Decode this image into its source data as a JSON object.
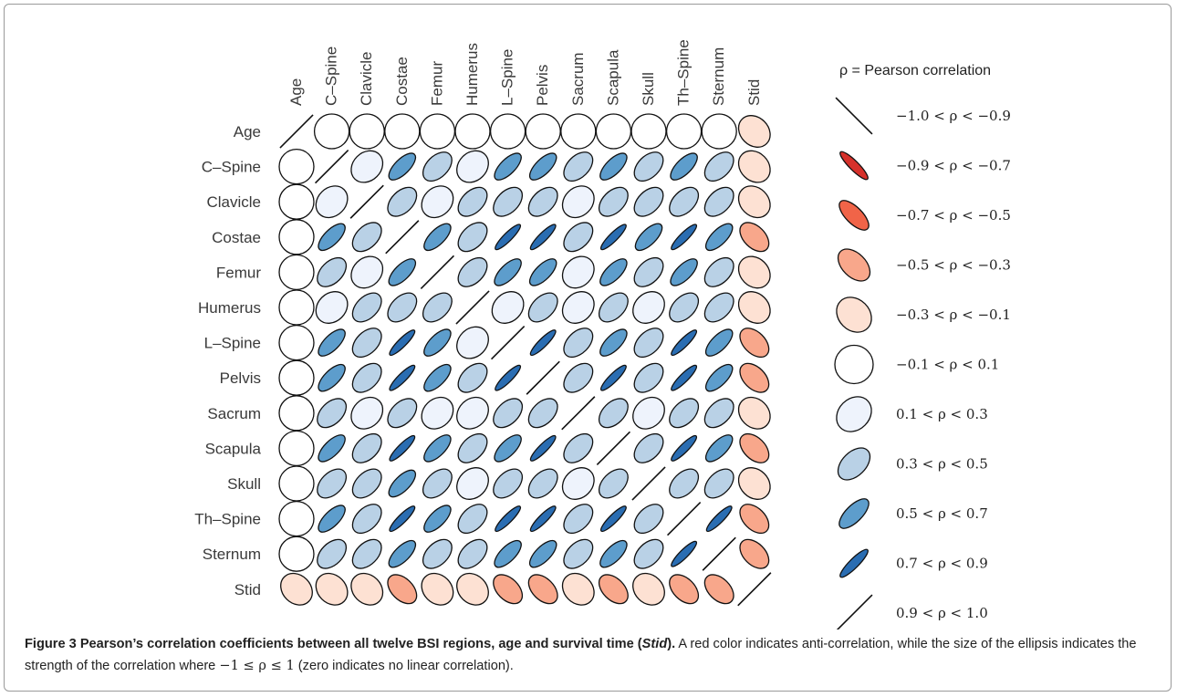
{
  "chart_data": {
    "type": "heatmap",
    "rows": [
      "Age",
      "C_Spine",
      "Clavicle",
      "Costae",
      "Femur",
      "Humerus",
      "L_Spine",
      "Pelvis",
      "Sacrum",
      "Scapula",
      "Skull",
      "Th_Spine",
      "Sternum",
      "Stid"
    ],
    "columns": [
      "Age",
      "C_Spine",
      "Clavicle",
      "Costae",
      "Femur",
      "Humerus",
      "L_Spine",
      "Pelvis",
      "Sacrum",
      "Scapula",
      "Skull",
      "Th_Spine",
      "Sternum",
      "Stid"
    ],
    "row_labels": [
      "Age",
      "C–Spine",
      "Clavicle",
      "Costae",
      "Femur",
      "Humerus",
      "L–Spine",
      "Pelvis",
      "Sacrum",
      "Scapula",
      "Skull",
      "Th–Spine",
      "Sternum",
      "Stid"
    ],
    "column_labels": [
      "Age",
      "C–Spine",
      "Clavicle",
      "Costae",
      "Femur",
      "Humerus",
      "L–Spine",
      "Pelvis",
      "Sacrum",
      "Scapula",
      "Skull",
      "Th–Spine",
      "Sternum",
      "Stid"
    ],
    "values": [
      [
        1.0,
        0.0,
        0.0,
        0.0,
        0.0,
        0.0,
        0.0,
        0.0,
        0.0,
        0.0,
        0.0,
        0.0,
        0.0,
        -0.2
      ],
      [
        0.0,
        1.0,
        0.2,
        0.6,
        0.4,
        0.2,
        0.6,
        0.6,
        0.4,
        0.6,
        0.4,
        0.6,
        0.4,
        -0.2
      ],
      [
        0.0,
        0.2,
        1.0,
        0.4,
        0.2,
        0.4,
        0.4,
        0.4,
        0.2,
        0.4,
        0.4,
        0.4,
        0.4,
        -0.2
      ],
      [
        0.0,
        0.6,
        0.4,
        1.0,
        0.6,
        0.4,
        0.8,
        0.8,
        0.4,
        0.8,
        0.6,
        0.8,
        0.6,
        -0.4
      ],
      [
        0.0,
        0.4,
        0.2,
        0.6,
        1.0,
        0.4,
        0.6,
        0.6,
        0.2,
        0.6,
        0.4,
        0.6,
        0.4,
        -0.2
      ],
      [
        0.0,
        0.2,
        0.4,
        0.4,
        0.4,
        1.0,
        0.2,
        0.4,
        0.2,
        0.4,
        0.2,
        0.4,
        0.4,
        -0.2
      ],
      [
        0.0,
        0.6,
        0.4,
        0.8,
        0.6,
        0.2,
        1.0,
        0.8,
        0.4,
        0.6,
        0.4,
        0.8,
        0.6,
        -0.4
      ],
      [
        0.0,
        0.6,
        0.4,
        0.8,
        0.6,
        0.4,
        0.8,
        1.0,
        0.4,
        0.8,
        0.4,
        0.8,
        0.6,
        -0.4
      ],
      [
        0.0,
        0.4,
        0.2,
        0.4,
        0.2,
        0.2,
        0.4,
        0.4,
        1.0,
        0.4,
        0.2,
        0.4,
        0.4,
        -0.2
      ],
      [
        0.0,
        0.6,
        0.4,
        0.8,
        0.6,
        0.4,
        0.6,
        0.8,
        0.4,
        1.0,
        0.4,
        0.8,
        0.6,
        -0.4
      ],
      [
        0.0,
        0.4,
        0.4,
        0.6,
        0.4,
        0.2,
        0.4,
        0.4,
        0.2,
        0.4,
        1.0,
        0.4,
        0.4,
        -0.2
      ],
      [
        0.0,
        0.6,
        0.4,
        0.8,
        0.6,
        0.4,
        0.8,
        0.8,
        0.4,
        0.8,
        0.4,
        1.0,
        0.8,
        -0.4
      ],
      [
        0.0,
        0.4,
        0.4,
        0.6,
        0.4,
        0.4,
        0.6,
        0.6,
        0.4,
        0.6,
        0.4,
        0.8,
        1.0,
        -0.4
      ],
      [
        -0.2,
        -0.2,
        -0.2,
        -0.4,
        -0.2,
        -0.2,
        -0.4,
        -0.4,
        -0.2,
        -0.4,
        -0.2,
        -0.4,
        -0.4,
        1.0
      ]
    ],
    "legend": {
      "title": "ρ = Pearson correlation",
      "items": [
        {
          "label": "−1.0 < ρ < −0.9",
          "value": -0.95,
          "color": "#ffffff"
        },
        {
          "label": "−0.9 < ρ < −0.7",
          "value": -0.8,
          "color": "#d6312b"
        },
        {
          "label": "−0.7 < ρ < −0.5",
          "value": -0.6,
          "color": "#f06448"
        },
        {
          "label": "−0.5 < ρ < −0.3",
          "value": -0.4,
          "color": "#f8a78b"
        },
        {
          "label": "−0.3 < ρ < −0.1",
          "value": -0.2,
          "color": "#fde1d3"
        },
        {
          "label": "−0.1 < ρ < 0.1",
          "value": 0.0,
          "color": "#ffffff"
        },
        {
          "label": "0.1 < ρ < 0.3",
          "value": 0.2,
          "color": "#eef3fc"
        },
        {
          "label": "0.3 < ρ < 0.5",
          "value": 0.4,
          "color": "#b9d1e6"
        },
        {
          "label": "0.5 < ρ < 0.7",
          "value": 0.6,
          "color": "#5d9dcc"
        },
        {
          "label": "0.7 < ρ < 0.9",
          "value": 0.8,
          "color": "#2a6db2"
        },
        {
          "label": "0.9 < ρ < 1.0",
          "value": 0.95,
          "color": "#ffffff"
        }
      ]
    },
    "colors": {
      "-0.9": "#ffffff",
      "-0.8": "#d6312b",
      "-0.6": "#f06448",
      "-0.4": "#f8a78b",
      "-0.2": "#fde1d3",
      "0.0": "#ffffff",
      "0.2": "#eef3fc",
      "0.4": "#b9d1e6",
      "0.6": "#5d9dcc",
      "0.8": "#2a6db2",
      "0.9": "#ffffff"
    }
  },
  "caption": {
    "bold": "Figure 3 Pearson’s correlation coefficients between all twelve BSI regions, age and survival time (",
    "bold_italic": "Stid",
    "bold_end": ").",
    "text_1": " A red color indicates anti-correlation, while the size of the ellipsis indicates the strength of the correlation where ",
    "math": "−1 ≤ ρ ≤ 1",
    "text_2": " (zero indicates no linear correlation)."
  }
}
